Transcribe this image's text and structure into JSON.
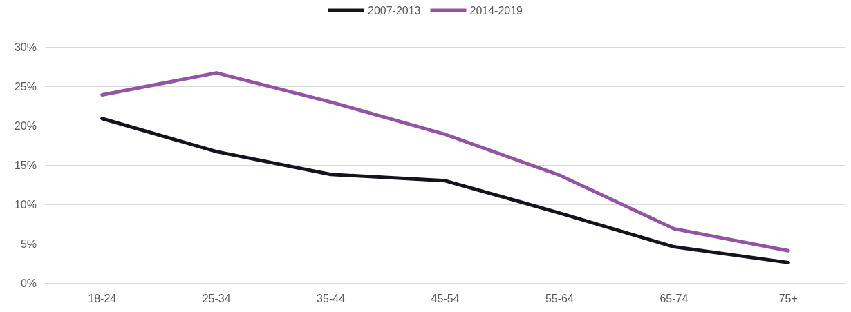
{
  "chart_data": {
    "type": "line",
    "categories": [
      "18-24",
      "25-34",
      "35-44",
      "45-54",
      "55-64",
      "65-74",
      "75+"
    ],
    "series": [
      {
        "name": "2007-2013",
        "color": "#14141e",
        "values": [
          20.9,
          16.7,
          13.8,
          13.0,
          8.9,
          4.6,
          2.6
        ]
      },
      {
        "name": "2014-2019",
        "color": "#9354a4",
        "values": [
          23.9,
          26.7,
          23.0,
          18.9,
          13.7,
          6.9,
          4.1
        ]
      }
    ],
    "ylim": [
      0,
      30
    ],
    "yticks": [
      {
        "value": 0,
        "label": "0%"
      },
      {
        "value": 5,
        "label": "5%"
      },
      {
        "value": 10,
        "label": "10%"
      },
      {
        "value": 15,
        "label": "15%"
      },
      {
        "value": 20,
        "label": "20%"
      },
      {
        "value": 25,
        "label": "25%"
      },
      {
        "value": 30,
        "label": "30%"
      }
    ],
    "grid": "y",
    "legend": "top",
    "marker": "none",
    "line_style": "solid"
  }
}
